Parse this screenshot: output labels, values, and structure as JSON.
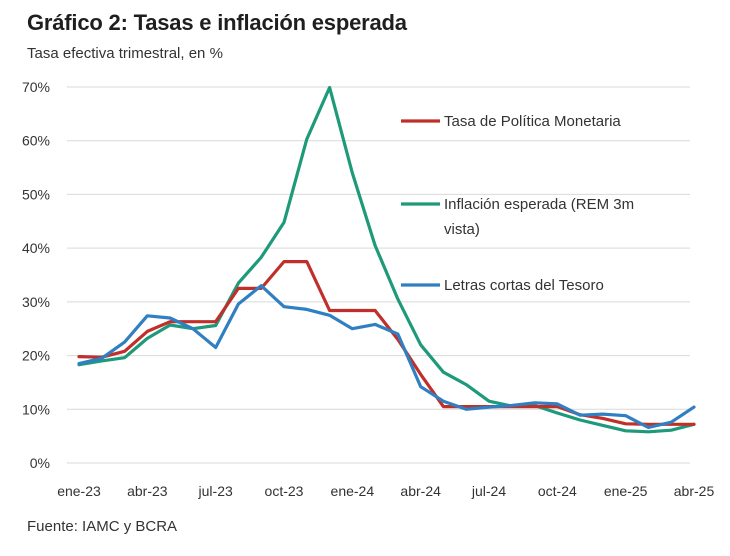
{
  "header": {
    "title": "Gráfico 2: Tasas e inflación esperada",
    "subtitle": "Tasa efectiva trimestral, en %"
  },
  "footer": {
    "source": "Fuente: IAMC y BCRA"
  },
  "chart_data": {
    "type": "line",
    "title": "Gráfico 2: Tasas e inflación esperada",
    "ylabel": "Tasa efectiva trimestral, en %",
    "ylim": [
      0,
      70
    ],
    "yticks": [
      0,
      10,
      20,
      30,
      40,
      50,
      60,
      70
    ],
    "ytick_labels": [
      "0%",
      "10%",
      "20%",
      "30%",
      "40%",
      "50%",
      "60%",
      "70%"
    ],
    "grid": "horizontal",
    "legend_position": "right",
    "x": [
      "ene-23",
      "feb-23",
      "mar-23",
      "abr-23",
      "may-23",
      "jun-23",
      "jul-23",
      "ago-23",
      "sep-23",
      "oct-23",
      "nov-23",
      "dic-23",
      "ene-24",
      "feb-24",
      "mar-24",
      "abr-24",
      "may-24",
      "jun-24",
      "jul-24",
      "ago-24",
      "sep-24",
      "oct-24",
      "nov-24",
      "dic-24",
      "ene-25",
      "feb-25",
      "mar-25",
      "abr-25"
    ],
    "xtick_labels": [
      "ene-23",
      "abr-23",
      "jul-23",
      "oct-23",
      "ene-24",
      "abr-24",
      "jul-24",
      "oct-24",
      "ene-25",
      "abr-25"
    ],
    "series": [
      {
        "name": "Tasa de Política Monetaria",
        "color": "#c0302b",
        "values": [
          19.8,
          19.7,
          20.8,
          24.5,
          26.3,
          26.3,
          26.3,
          32.5,
          32.5,
          37.5,
          37.5,
          28.4,
          28.4,
          28.4,
          23.0,
          16.5,
          10.5,
          10.5,
          10.5,
          10.5,
          10.5,
          10.5,
          9.0,
          8.3,
          7.3,
          7.2,
          7.2,
          7.2
        ]
      },
      {
        "name": "Inflación esperada (REM 3m vista)",
        "color": "#1e9a7a",
        "values": [
          18.3,
          19.0,
          19.6,
          23.2,
          25.7,
          25.0,
          25.6,
          33.5,
          38.3,
          44.8,
          60.3,
          69.9,
          54.0,
          40.5,
          30.5,
          22.0,
          16.9,
          14.6,
          11.5,
          10.6,
          10.7,
          9.3,
          8.0,
          7.0,
          6.0,
          5.8,
          6.1,
          7.2
        ]
      },
      {
        "name": "Letras cortas del Tesoro",
        "color": "#2f7fc2",
        "values": [
          18.5,
          19.5,
          22.5,
          27.4,
          27.0,
          25.0,
          21.5,
          29.6,
          33.0,
          29.1,
          28.6,
          27.5,
          25.0,
          25.8,
          24.0,
          14.2,
          11.5,
          10.0,
          10.4,
          10.7,
          11.2,
          11.0,
          8.9,
          9.1,
          8.8,
          6.6,
          7.6,
          10.4
        ]
      }
    ]
  }
}
